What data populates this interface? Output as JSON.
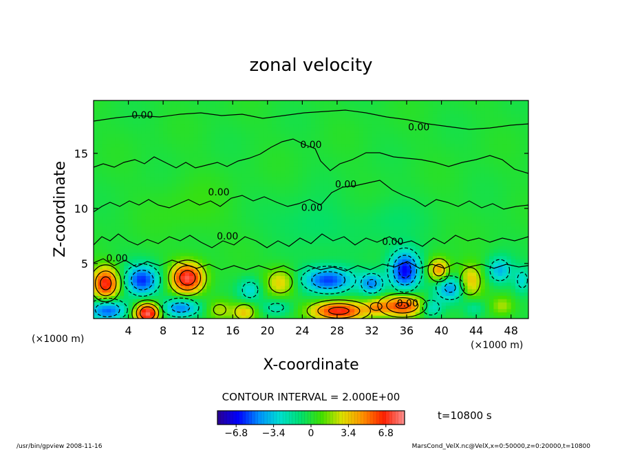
{
  "chart_data": {
    "type": "heatmap",
    "title": "zonal velocity",
    "xlabel": "X-coordinate",
    "ylabel": "Z-coordinate",
    "x_unit": "(×1000 m)",
    "y_unit": "(×1000 m)",
    "xlim": [
      0,
      50
    ],
    "ylim": [
      0,
      19.8
    ],
    "xticks": [
      4,
      8,
      12,
      16,
      20,
      24,
      28,
      32,
      36,
      40,
      44,
      48
    ],
    "yticks": [
      5,
      10,
      15
    ],
    "contour_interval_text": "CONTOUR INTERVAL = 2.000E+00",
    "time_text": "t=10800 s",
    "colorbar": {
      "range": [
        -8.5,
        8.5
      ],
      "ticks": [
        -6.8,
        -3.4,
        0,
        3.4,
        6.8
      ],
      "tick_labels": [
        "−6.8",
        "−3.4",
        "0",
        "3.4",
        "6.8"
      ],
      "colors": [
        "#2a0090",
        "#0000ff",
        "#0090ff",
        "#00e0d0",
        "#00e070",
        "#40e000",
        "#e0e000",
        "#ff9000",
        "#ff2000",
        "#ff9090"
      ]
    },
    "contour_labels": [
      {
        "text": "0.00",
        "x": 5.6,
        "y": 18.5
      },
      {
        "text": "0.00",
        "x": 37.4,
        "y": 17.4
      },
      {
        "text": "0.00",
        "x": 25.0,
        "y": 15.8
      },
      {
        "text": "0.00",
        "x": 29.0,
        "y": 12.2
      },
      {
        "text": "0.00",
        "x": 14.4,
        "y": 11.5
      },
      {
        "text": "0.00",
        "x": 25.1,
        "y": 10.1
      },
      {
        "text": "0.00",
        "x": 15.4,
        "y": 7.5
      },
      {
        "text": "0.00",
        "x": 34.4,
        "y": 7.0
      },
      {
        "text": "0.00",
        "x": 2.7,
        "y": 5.5
      },
      {
        "text": "0.00",
        "x": 36.1,
        "y": 1.4
      }
    ],
    "anomalies": [
      {
        "x": 1.4,
        "z": 3.2,
        "v": 7.0,
        "rx": 1.6,
        "rz": 1.5
      },
      {
        "x": 5.6,
        "z": 3.5,
        "v": -6.0,
        "rx": 2.0,
        "rz": 1.4
      },
      {
        "x": 10.8,
        "z": 3.7,
        "v": 7.5,
        "rx": 1.9,
        "rz": 1.4
      },
      {
        "x": 6.2,
        "z": 0.5,
        "v": 8.3,
        "rx": 1.5,
        "rz": 1.0
      },
      {
        "x": 1.6,
        "z": 0.8,
        "v": -6.0,
        "rx": 2.2,
        "rz": 1.0
      },
      {
        "x": 10.0,
        "z": 1.0,
        "v": -5.0,
        "rx": 2.2,
        "rz": 0.9
      },
      {
        "x": 14.5,
        "z": 0.8,
        "v": 2.5,
        "rx": 1.5,
        "rz": 1.0
      },
      {
        "x": 18.0,
        "z": 2.6,
        "v": -3.0,
        "rx": 1.4,
        "rz": 1.1
      },
      {
        "x": 17.3,
        "z": 0.6,
        "v": 3.5,
        "rx": 1.4,
        "rz": 0.9
      },
      {
        "x": 21.5,
        "z": 3.3,
        "v": 3.5,
        "rx": 1.8,
        "rz": 1.3
      },
      {
        "x": 21.0,
        "z": 1.0,
        "v": -2.5,
        "rx": 1.8,
        "rz": 0.8
      },
      {
        "x": 27.0,
        "z": 3.5,
        "v": -6.0,
        "rx": 3.0,
        "rz": 1.2
      },
      {
        "x": 28.2,
        "z": 0.7,
        "v": 6.8,
        "rx": 3.3,
        "rz": 0.9
      },
      {
        "x": 32.0,
        "z": 3.2,
        "v": -4.5,
        "rx": 1.4,
        "rz": 1.0
      },
      {
        "x": 35.8,
        "z": 4.4,
        "v": -7.0,
        "rx": 1.8,
        "rz": 1.8
      },
      {
        "x": 35.5,
        "z": 1.2,
        "v": 6.5,
        "rx": 2.6,
        "rz": 1.0
      },
      {
        "x": 32.5,
        "z": 1.1,
        "v": 2.6,
        "rx": 1.3,
        "rz": 0.7
      },
      {
        "x": 39.7,
        "z": 4.4,
        "v": 5.0,
        "rx": 1.3,
        "rz": 1.1
      },
      {
        "x": 41.0,
        "z": 2.8,
        "v": -4.5,
        "rx": 1.8,
        "rz": 1.2
      },
      {
        "x": 38.8,
        "z": 1.0,
        "v": -3.5,
        "rx": 1.3,
        "rz": 0.9
      },
      {
        "x": 43.3,
        "z": 3.4,
        "v": 4.0,
        "rx": 1.4,
        "rz": 1.5
      },
      {
        "x": 46.7,
        "z": 4.4,
        "v": -3.8,
        "rx": 1.4,
        "rz": 1.2
      },
      {
        "x": 49.3,
        "z": 3.5,
        "v": -2.8,
        "rx": 1.0,
        "rz": 1.2
      },
      {
        "x": 47.0,
        "z": 1.2,
        "v": 2.0,
        "rx": 1.2,
        "rz": 0.8
      },
      {
        "x": 43.8,
        "z": 1.0,
        "v": -1.8,
        "rx": 1.2,
        "rz": 0.8
      },
      {
        "x": 25.0,
        "z": 8.5,
        "v": -1.0,
        "rx": 4.0,
        "rz": 2.5
      },
      {
        "x": 34.0,
        "z": 9.0,
        "v": -0.8,
        "rx": 3.5,
        "rz": 2.2
      },
      {
        "x": 11.0,
        "z": 10.0,
        "v": 0.6,
        "rx": 4.0,
        "rz": 3.0
      }
    ]
  },
  "footer": {
    "left": "/usr/bin/gpview   2008-11-16",
    "right": "MarsCond_VelX.nc@VelX,x=0:50000,z=0:20000,t=10800"
  }
}
